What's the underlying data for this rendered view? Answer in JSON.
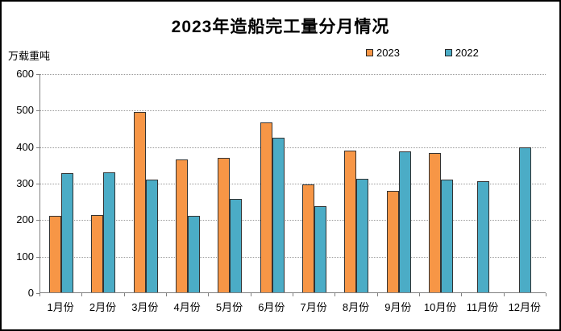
{
  "chart": {
    "title": "2023年造船完工量分月情况",
    "unit_label": "万载重吨"
  },
  "chart_data": {
    "type": "bar",
    "title": "2023年造船完工量分月情况",
    "ylabel": "万载重吨",
    "xlabel": "",
    "categories": [
      "1月份",
      "2月份",
      "3月份",
      "4月份",
      "5月份",
      "6月份",
      "7月份",
      "8月份",
      "9月份",
      "10月份",
      "11月份",
      "12月份"
    ],
    "series": [
      {
        "name": "2023",
        "color": "#F79646",
        "border_color": "#333333",
        "values": [
          210,
          211,
          494,
          363,
          368,
          466,
          296,
          389,
          277,
          381,
          null,
          null
        ]
      },
      {
        "name": "2022",
        "color": "#4BACC6",
        "border_color": "#333333",
        "values": [
          326,
          328,
          308,
          210,
          257,
          423,
          235,
          310,
          386,
          308,
          304,
          396
        ]
      }
    ],
    "ylim": [
      0,
      600
    ],
    "y_ticks": [
      0,
      100,
      200,
      300,
      400,
      500,
      600
    ],
    "grid": "horizontal-dotted",
    "legend_position": "top-right"
  }
}
